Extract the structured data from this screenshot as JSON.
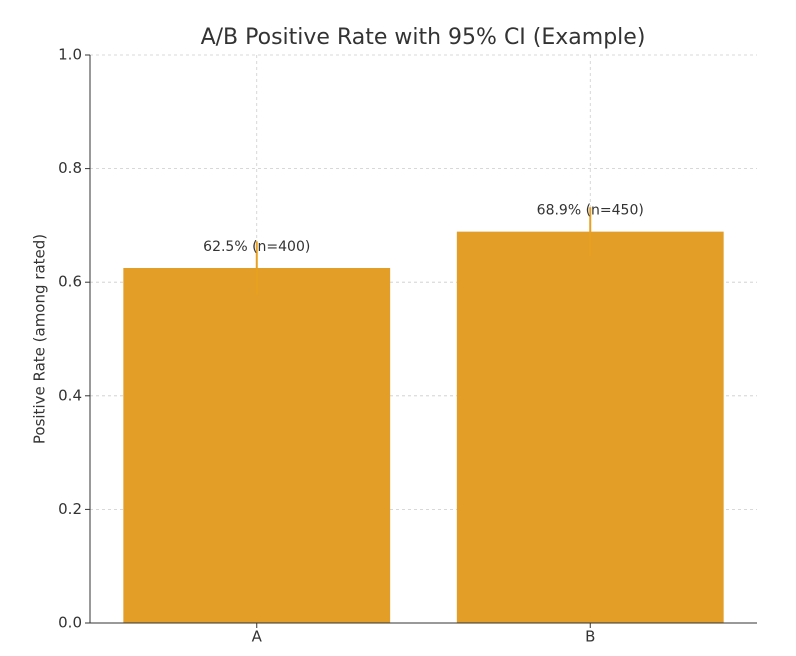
{
  "chart_data": {
    "type": "bar",
    "title": "A/B Positive Rate with 95% CI (Example)",
    "y_label": "Positive Rate (among rated)",
    "categories": [
      "A",
      "B"
    ],
    "values": [
      0.625,
      0.689
    ],
    "errors": [
      0.047,
      0.043
    ],
    "value_labels": [
      "62.5% (n=400)",
      "68.9% (n=450)"
    ],
    "color": "#e29e26",
    "ylim": [
      0,
      1
    ],
    "yticks": [
      {
        "value": 0,
        "label": "0.0"
      },
      0.2,
      0.4,
      0.6,
      0.8,
      {
        "value": 1,
        "label": "1.0"
      }
    ],
    "grid": true
  }
}
